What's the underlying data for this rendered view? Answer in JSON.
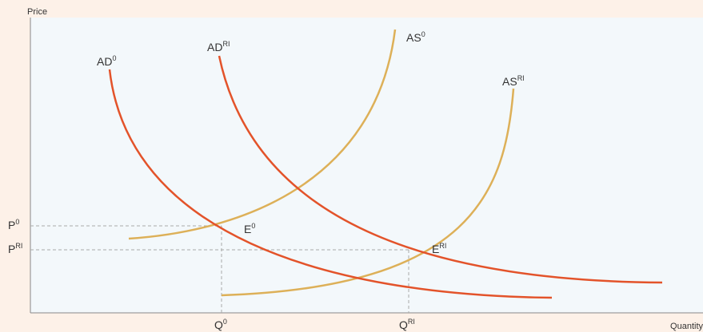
{
  "axes": {
    "y_label": "Price",
    "x_label": "Quantity"
  },
  "curves": {
    "ad0": {
      "base": "AD",
      "sup": "0"
    },
    "adri": {
      "base": "AD",
      "sup": "RI"
    },
    "as0": {
      "base": "AS",
      "sup": "0"
    },
    "asri": {
      "base": "AS",
      "sup": "RI"
    }
  },
  "equilibria": {
    "e0": {
      "base": "E",
      "sup": "0"
    },
    "eri": {
      "base": "E",
      "sup": "RI"
    }
  },
  "price_ticks": {
    "p0": {
      "base": "P",
      "sup": "0"
    },
    "pri": {
      "base": "P",
      "sup": "RI"
    }
  },
  "quantity_ticks": {
    "q0": {
      "base": "Q",
      "sup": "0"
    },
    "qri": {
      "base": "Q",
      "sup": "RI"
    }
  },
  "colors": {
    "background": "#fdf1e8",
    "plot_area": "#f3f8fb",
    "demand": "#e3532a",
    "supply": "#ddb058",
    "guide": "#aaaaaa",
    "axis": "#888888"
  }
}
